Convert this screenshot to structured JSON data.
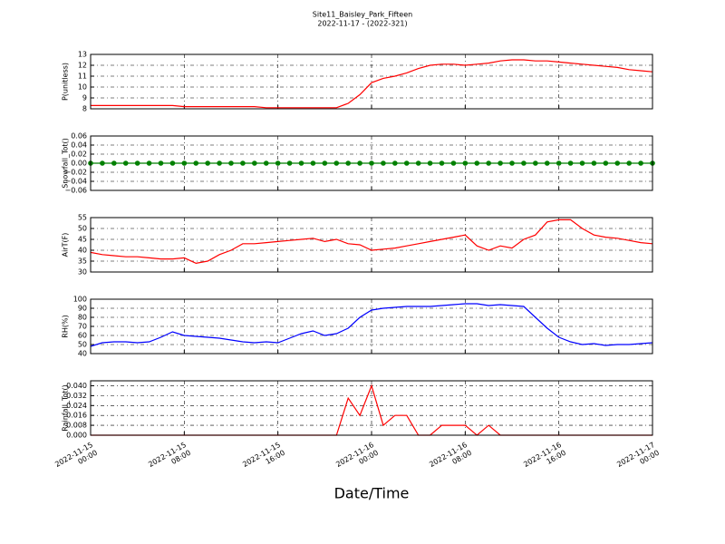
{
  "chart_data": {
    "type": "line",
    "title": "Site11_Baisley_Park_Fifteen",
    "subtitle": "2022-11-17 - (2022-321)",
    "xlabel": "Date/Time",
    "grid": true,
    "xlim": [
      "2022-11-15 00:00",
      "2022-11-17 00:00"
    ],
    "xticks": [
      {
        "value": "2022-11-15 00:00",
        "label": "2022-11-15\n00:00"
      },
      {
        "value": "2022-11-15 08:00",
        "label": "2022-11-15\n08:00"
      },
      {
        "value": "2022-11-15 16:00",
        "label": "2022-11-15\n16:00"
      },
      {
        "value": "2022-11-16 00:00",
        "label": "2022-11-16\n00:00"
      },
      {
        "value": "2022-11-16 08:00",
        "label": "2022-11-16\n08:00"
      },
      {
        "value": "2022-11-16 16:00",
        "label": "2022-11-16\n16:00"
      },
      {
        "value": "2022-11-17 00:00",
        "label": "2022-11-17\n00:00"
      }
    ],
    "x": [
      "2022-11-15 00:00",
      "2022-11-15 01:00",
      "2022-11-15 02:00",
      "2022-11-15 03:00",
      "2022-11-15 04:00",
      "2022-11-15 05:00",
      "2022-11-15 06:00",
      "2022-11-15 07:00",
      "2022-11-15 08:00",
      "2022-11-15 09:00",
      "2022-11-15 10:00",
      "2022-11-15 11:00",
      "2022-11-15 12:00",
      "2022-11-15 13:00",
      "2022-11-15 14:00",
      "2022-11-15 15:00",
      "2022-11-15 16:00",
      "2022-11-15 17:00",
      "2022-11-15 18:00",
      "2022-11-15 19:00",
      "2022-11-15 20:00",
      "2022-11-15 21:00",
      "2022-11-15 22:00",
      "2022-11-15 23:00",
      "2022-11-16 00:00",
      "2022-11-16 01:00",
      "2022-11-16 02:00",
      "2022-11-16 03:00",
      "2022-11-16 04:00",
      "2022-11-16 05:00",
      "2022-11-16 06:00",
      "2022-11-16 07:00",
      "2022-11-16 08:00",
      "2022-11-16 09:00",
      "2022-11-16 10:00",
      "2022-11-16 11:00",
      "2022-11-16 12:00",
      "2022-11-16 13:00",
      "2022-11-16 14:00",
      "2022-11-16 15:00",
      "2022-11-16 16:00",
      "2022-11-16 17:00",
      "2022-11-16 18:00",
      "2022-11-16 19:00",
      "2022-11-16 20:00",
      "2022-11-16 21:00",
      "2022-11-16 22:00",
      "2022-11-16 23:00",
      "2022-11-17 00:00"
    ],
    "panels": [
      {
        "ylabel": "P(unitless)",
        "ylim": [
          8,
          13
        ],
        "yticks": [
          8,
          9,
          10,
          11,
          12,
          13
        ],
        "series": [
          {
            "color": "#ff0000",
            "values": [
              8.3,
              8.3,
              8.3,
              8.3,
              8.3,
              8.3,
              8.3,
              8.3,
              8.2,
              8.2,
              8.2,
              8.2,
              8.2,
              8.2,
              8.2,
              8.1,
              8.1,
              8.1,
              8.1,
              8.1,
              8.1,
              8.1,
              8.5,
              9.3,
              10.4,
              10.8,
              11.0,
              11.3,
              11.7,
              12.0,
              12.1,
              12.1,
              12.0,
              12.1,
              12.2,
              12.4,
              12.5,
              12.5,
              12.4,
              12.4,
              12.3,
              12.2,
              12.1,
              12.0,
              11.9,
              11.8,
              11.6,
              11.5,
              11.4
            ]
          }
        ]
      },
      {
        "ylabel": "Snowfall_Tot()",
        "ylim": [
          -0.06,
          0.06
        ],
        "marker": "o",
        "yticks": [
          {
            "value": -0.06,
            "label": "−0.06"
          },
          {
            "value": -0.04,
            "label": "−0.04"
          },
          {
            "value": -0.02,
            "label": "−0.02"
          },
          {
            "value": 0,
            "label": "0.00"
          },
          {
            "value": 0.02,
            "label": "0.02"
          },
          {
            "value": 0.04,
            "label": "0.04"
          },
          {
            "value": 0.06,
            "label": "0.06"
          }
        ],
        "series": [
          {
            "color": "#008000",
            "values": [
              0,
              0,
              0,
              0,
              0,
              0,
              0,
              0,
              0,
              0,
              0,
              0,
              0,
              0,
              0,
              0,
              0,
              0,
              0,
              0,
              0,
              0,
              0,
              0,
              0,
              0,
              0,
              0,
              0,
              0,
              0,
              0,
              0,
              0,
              0,
              0,
              0,
              0,
              0,
              0,
              0,
              0,
              0,
              0,
              0,
              0,
              0,
              0,
              0
            ]
          }
        ]
      },
      {
        "ylabel": "AirT(F)",
        "ylim": [
          30,
          55
        ],
        "yticks": [
          30,
          35,
          40,
          45,
          50,
          55
        ],
        "series": [
          {
            "color": "#ff0000",
            "values": [
              39,
              38,
              37.5,
              37,
              37,
              36.5,
              36,
              36,
              36.5,
              34,
              35,
              38,
              40,
              43,
              43,
              43.5,
              44,
              44.5,
              45,
              45.5,
              44,
              45,
              43,
              42.5,
              40,
              40.5,
              41,
              42,
              43,
              44,
              45,
              46,
              47,
              42,
              40,
              42,
              41,
              45,
              47,
              53,
              54,
              54,
              50,
              47,
              46,
              45.5,
              44.5,
              43.5,
              43
            ]
          }
        ]
      },
      {
        "ylabel": "RH(%)",
        "ylim": [
          40,
          100
        ],
        "yticks": [
          40,
          50,
          60,
          70,
          80,
          90,
          100
        ],
        "series": [
          {
            "color": "#0000ff",
            "values": [
              48,
              52,
              53,
              53,
              52,
              53,
              58,
              64,
              60,
              59,
              58,
              57,
              55,
              53,
              52,
              53,
              52,
              57,
              62,
              65,
              60,
              62,
              68,
              80,
              88,
              90,
              91,
              92,
              92,
              92,
              93,
              94,
              95,
              95,
              93,
              94,
              93,
              92,
              80,
              68,
              58,
              53,
              50,
              51,
              49,
              50,
              50,
              51,
              52
            ]
          }
        ]
      },
      {
        "ylabel": "Rainfall_Tot()",
        "ylim": [
          0,
          0.044
        ],
        "yticks": [
          {
            "value": 0,
            "label": "0.000"
          },
          {
            "value": 0.008,
            "label": "0.008"
          },
          {
            "value": 0.016,
            "label": "0.016"
          },
          {
            "value": 0.024,
            "label": "0.024"
          },
          {
            "value": 0.032,
            "label": "0.032"
          },
          {
            "value": 0.04,
            "label": "0.040"
          }
        ],
        "series": [
          {
            "color": "#ff0000",
            "values": [
              0,
              0,
              0,
              0,
              0,
              0,
              0,
              0,
              0,
              0,
              0,
              0,
              0,
              0,
              0,
              0,
              0,
              0,
              0,
              0,
              0,
              0,
              0.03,
              0.016,
              0.04,
              0.008,
              0.016,
              0.016,
              0,
              0,
              0.008,
              0.008,
              0.008,
              0,
              0.008,
              0,
              0,
              0,
              0,
              0,
              0,
              0,
              0,
              0,
              0,
              0,
              0,
              0,
              0
            ]
          }
        ]
      }
    ]
  }
}
